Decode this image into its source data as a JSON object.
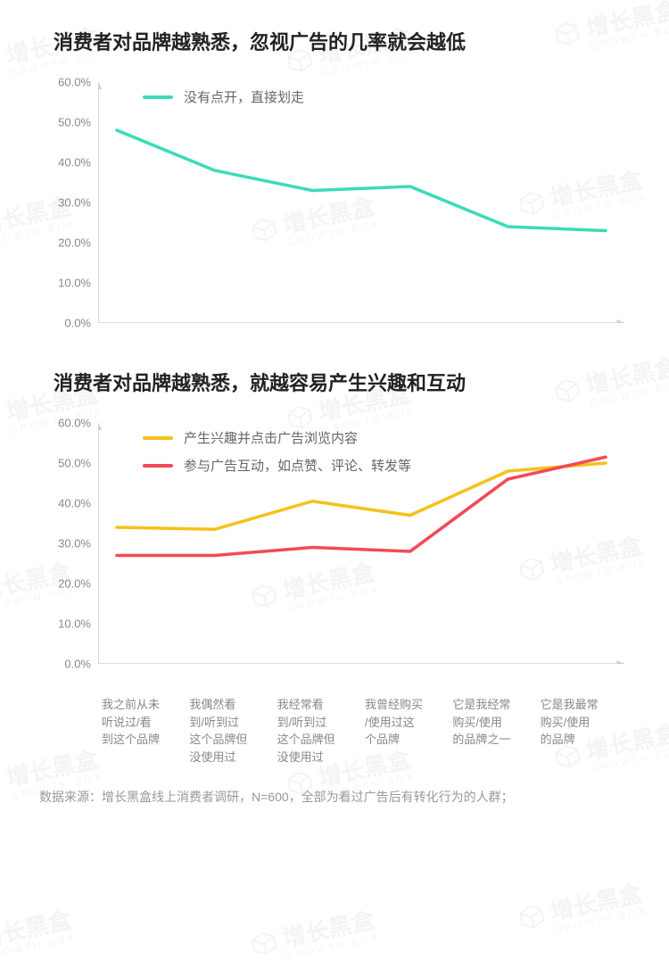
{
  "background_color": "#ffffff",
  "text_color_title": "#222222",
  "text_color_axis": "#888888",
  "axis_color": "#cfcfcf",
  "watermark": {
    "cn": "增长黑盒",
    "en": "GROWTH BOX",
    "opacity": 0.04,
    "rotate_deg": -12
  },
  "charts": [
    {
      "title": "消费者对品牌越熟悉，忽视广告的几率就会越低",
      "type": "line",
      "ylim": [
        0,
        60
      ],
      "ytick_step": 10,
      "y_suffix": "%",
      "title_fontsize": 22,
      "axis_fontsize": 13,
      "line_width": 3.5,
      "series": [
        {
          "label": "没有点开，直接划走",
          "color": "#3ddbb8",
          "values": [
            48,
            38,
            33,
            34,
            24,
            23
          ]
        }
      ],
      "legend_pos": "top-left-inside"
    },
    {
      "title": "消费者对品牌越熟悉，就越容易产生兴趣和互动",
      "type": "line",
      "ylim": [
        0,
        60
      ],
      "ytick_step": 10,
      "y_suffix": "%",
      "title_fontsize": 22,
      "axis_fontsize": 13,
      "line_width": 3.5,
      "series": [
        {
          "label": "产生兴趣并点击广告浏览内容",
          "color": "#f5c11a",
          "values": [
            34,
            33.5,
            40.5,
            37,
            48,
            50
          ]
        },
        {
          "label": "参与广告互动，如点赞、评论、转发等",
          "color": "#f24a57",
          "values": [
            27,
            27,
            29,
            28,
            46,
            51.5
          ]
        }
      ],
      "legend_pos": "top-left-inside"
    }
  ],
  "x_categories": [
    "我之前从未听说过/看到这个品牌",
    "我偶然看到/听到过这个品牌但没使用过",
    "我经常看到/听到过这个品牌但没使用过",
    "我曾经购买/使用过这个品牌",
    "它是我经常购买/使用的品牌之一",
    "它是我最常购买/使用的品牌"
  ],
  "x_label_lines": [
    [
      "我之前从未",
      "听说过/看",
      "到这个品牌"
    ],
    [
      "我偶然看",
      "到/听到过",
      "这个品牌但",
      "没使用过"
    ],
    [
      "我经常看",
      "到/听到过",
      "这个品牌但",
      "没使用过"
    ],
    [
      "我曾经购买",
      "/使用过这",
      "个品牌"
    ],
    [
      "它是我经常",
      "购买/使用",
      "的品牌之一"
    ],
    [
      "它是我最常",
      "购买/使用",
      "的品牌"
    ]
  ],
  "footer": "数据来源：增长黑盒线上消费者调研，N=600，全部为看过广告后有转化行为的人群；"
}
